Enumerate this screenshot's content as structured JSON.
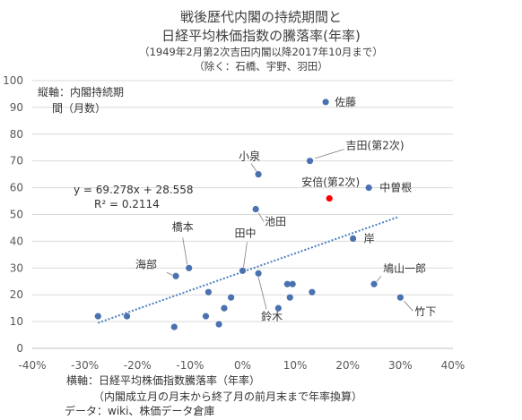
{
  "title": {
    "line1": "戦後歴代内閣の持続期間と",
    "line2": "日経平均株価指数の騰落率(年率)",
    "line3": "（1949年2月第2次吉田内閣以降2017年10月まで）",
    "line4": "（除く：石橋、宇野、羽田）"
  },
  "y_axis_label": {
    "line1": "縦軸：内閣持続期",
    "line2": "間（月数）"
  },
  "trendline": {
    "equation": "y = 69.278x + 28.558",
    "r_squared": "R² = 0.2114"
  },
  "footer": {
    "x_axis_label": "横軸：日経平均株価指数騰落率（年率）",
    "note": "（内閣成立月の月末から終了月の前月末まで年率換算）",
    "source": "データ：wiki、株価データ倉庫"
  },
  "chart_data": {
    "type": "scatter",
    "xlim": [
      -0.4,
      0.4
    ],
    "ylim": [
      0,
      100
    ],
    "x_ticks": [
      -0.4,
      -0.3,
      -0.2,
      -0.1,
      0,
      0.1,
      0.2,
      0.3,
      0.4
    ],
    "x_tick_labels": [
      "-40%",
      "-30%",
      "-20%",
      "-10%",
      "0%",
      "10%",
      "20%",
      "30%",
      "40%"
    ],
    "y_ticks": [
      0,
      10,
      20,
      30,
      40,
      50,
      60,
      70,
      80,
      90,
      100
    ],
    "y_tick_labels": [
      "0",
      "10",
      "20",
      "30",
      "40",
      "50",
      "60",
      "70",
      "80",
      "90",
      "100"
    ],
    "grid": "horizontal",
    "marker_color": "#4a72b0",
    "highlight_color": "#ff0000",
    "trend_color": "#4a7fc0",
    "trend_x_range": [
      -0.275,
      0.295
    ],
    "trend": {
      "slope": 69.278,
      "intercept": 28.558
    },
    "points": [
      {
        "x": 0.158,
        "y": 92,
        "label": "佐藤"
      },
      {
        "x": 0.128,
        "y": 70,
        "label": "吉田(第2次)"
      },
      {
        "x": 0.03,
        "y": 65,
        "label": "小泉"
      },
      {
        "x": 0.24,
        "y": 60,
        "label": "中曽根"
      },
      {
        "x": 0.165,
        "y": 56,
        "label": "安倍(第2次)",
        "highlight": true
      },
      {
        "x": 0.025,
        "y": 52,
        "label": "池田"
      },
      {
        "x": 0.21,
        "y": 41,
        "label": "岸"
      },
      {
        "x": -0.102,
        "y": 30,
        "label": "橋本"
      },
      {
        "x": 0.0,
        "y": 29,
        "label": "田中"
      },
      {
        "x": -0.127,
        "y": 27,
        "label": "海部"
      },
      {
        "x": 0.03,
        "y": 28,
        "label": "鈴木"
      },
      {
        "x": 0.25,
        "y": 24,
        "label": "鳩山一郎"
      },
      {
        "x": 0.3,
        "y": 19,
        "label": "竹下"
      },
      {
        "x": -0.275,
        "y": 12
      },
      {
        "x": -0.22,
        "y": 12
      },
      {
        "x": -0.13,
        "y": 8
      },
      {
        "x": -0.065,
        "y": 21
      },
      {
        "x": -0.07,
        "y": 12
      },
      {
        "x": -0.045,
        "y": 9
      },
      {
        "x": -0.035,
        "y": 15
      },
      {
        "x": -0.022,
        "y": 19
      },
      {
        "x": 0.068,
        "y": 15
      },
      {
        "x": 0.085,
        "y": 24
      },
      {
        "x": 0.095,
        "y": 24
      },
      {
        "x": 0.09,
        "y": 19
      },
      {
        "x": 0.132,
        "y": 21
      }
    ]
  }
}
